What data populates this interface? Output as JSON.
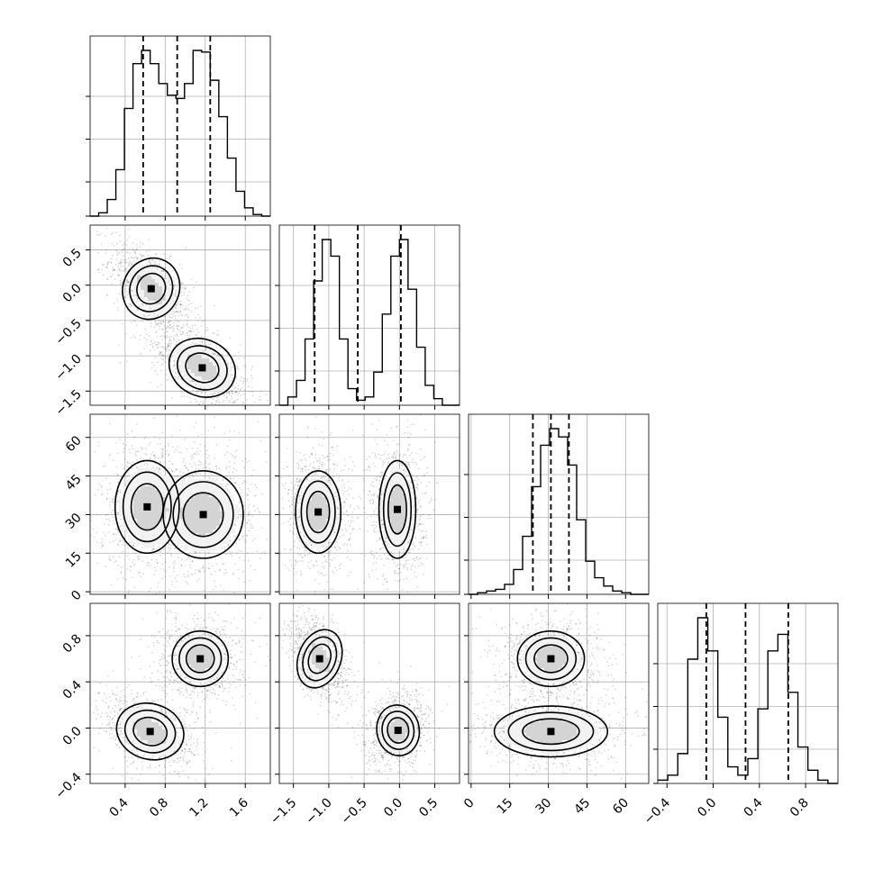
{
  "chart_data": {
    "type": "corner",
    "grid": true,
    "variables": [
      {
        "ticks": [
          0.4,
          0.8,
          1.2,
          1.6
        ],
        "tick_labels": [
          "0.4",
          "0.8",
          "1.2",
          "1.6"
        ],
        "range": [
          0.05,
          1.85
        ],
        "quantiles": [
          0.58,
          0.92,
          1.25
        ]
      },
      {
        "ticks": [
          -1.5,
          -1.0,
          -0.5,
          0.0,
          0.5
        ],
        "tick_labels": [
          "−1.5",
          "−1.0",
          "−0.5",
          "0.0",
          "0.5"
        ],
        "range": [
          -1.7,
          0.85
        ],
        "quantiles": [
          -1.2,
          -0.59,
          0.02
        ]
      },
      {
        "ticks": [
          0,
          15,
          30,
          45,
          60
        ],
        "tick_labels": [
          "0",
          "15",
          "30",
          "45",
          "60"
        ],
        "range": [
          -1,
          69
        ],
        "quantiles": [
          24,
          31,
          38
        ]
      },
      {
        "ticks": [
          -0.4,
          0.0,
          0.4,
          0.8
        ],
        "tick_labels": [
          "−0.4",
          "0.0",
          "0.4",
          "0.8"
        ],
        "range": [
          -0.48,
          1.08
        ],
        "quantiles": [
          -0.06,
          0.28,
          0.65
        ]
      }
    ],
    "marginals": [
      {
        "counts": [
          0,
          2,
          10,
          28,
          65,
          92,
          100,
          92,
          80,
          73,
          71,
          80,
          100,
          99,
          82,
          60,
          35,
          15,
          5,
          1,
          0
        ]
      },
      {
        "counts": [
          0,
          5,
          15,
          40,
          75,
          100,
          90,
          40,
          10,
          3,
          5,
          20,
          55,
          90,
          100,
          70,
          35,
          12,
          4,
          0,
          0
        ]
      },
      {
        "counts": [
          0,
          1,
          2,
          3,
          6,
          15,
          35,
          65,
          90,
          100,
          95,
          78,
          45,
          20,
          10,
          5,
          2,
          1,
          0,
          0
        ]
      },
      {
        "counts": [
          2,
          5,
          18,
          75,
          100,
          80,
          40,
          10,
          5,
          15,
          45,
          80,
          90,
          55,
          22,
          8,
          2,
          0
        ]
      }
    ],
    "pairs": [
      {
        "row": 1,
        "col": 0,
        "clusters": [
          {
            "mx": 0.66,
            "my": -0.05,
            "sx": 0.14,
            "sy": 0.22,
            "rho": -0.6,
            "w": 0.5
          },
          {
            "mx": 1.17,
            "my": -1.17,
            "sx": 0.17,
            "sy": 0.2,
            "rho": -0.6,
            "w": 0.5
          }
        ]
      },
      {
        "row": 2,
        "col": 0,
        "clusters": [
          {
            "mx": 0.62,
            "my": 33,
            "sx": 0.16,
            "sy": 9,
            "rho": 0,
            "w": 0.5
          },
          {
            "mx": 1.18,
            "my": 30,
            "sx": 0.2,
            "sy": 8.5,
            "rho": 0,
            "w": 0.5
          }
        ]
      },
      {
        "row": 2,
        "col": 1,
        "clusters": [
          {
            "mx": -1.15,
            "my": 31,
            "sx": 0.16,
            "sy": 8,
            "rho": 0,
            "w": 0.5
          },
          {
            "mx": -0.03,
            "my": 32,
            "sx": 0.13,
            "sy": 9.5,
            "rho": 0,
            "w": 0.5
          }
        ]
      },
      {
        "row": 3,
        "col": 0,
        "clusters": [
          {
            "mx": 0.65,
            "my": -0.03,
            "sx": 0.17,
            "sy": 0.12,
            "rho": -0.4,
            "w": 0.5
          },
          {
            "mx": 1.15,
            "my": 0.6,
            "sx": 0.14,
            "sy": 0.12,
            "rho": 0,
            "w": 0.5
          }
        ]
      },
      {
        "row": 3,
        "col": 1,
        "clusters": [
          {
            "mx": -1.13,
            "my": 0.6,
            "sx": 0.15,
            "sy": 0.13,
            "rho": -0.5,
            "w": 0.5
          },
          {
            "mx": -0.02,
            "my": -0.02,
            "sx": 0.15,
            "sy": 0.11,
            "rho": 0.2,
            "w": 0.5
          }
        ]
      },
      {
        "row": 3,
        "col": 2,
        "clusters": [
          {
            "mx": 31,
            "my": 0.6,
            "sx": 6.5,
            "sy": 0.12,
            "rho": 0,
            "w": 0.5
          },
          {
            "mx": 31,
            "my": -0.03,
            "sx": 11,
            "sy": 0.11,
            "rho": 0,
            "w": 0.5
          }
        ]
      }
    ]
  }
}
